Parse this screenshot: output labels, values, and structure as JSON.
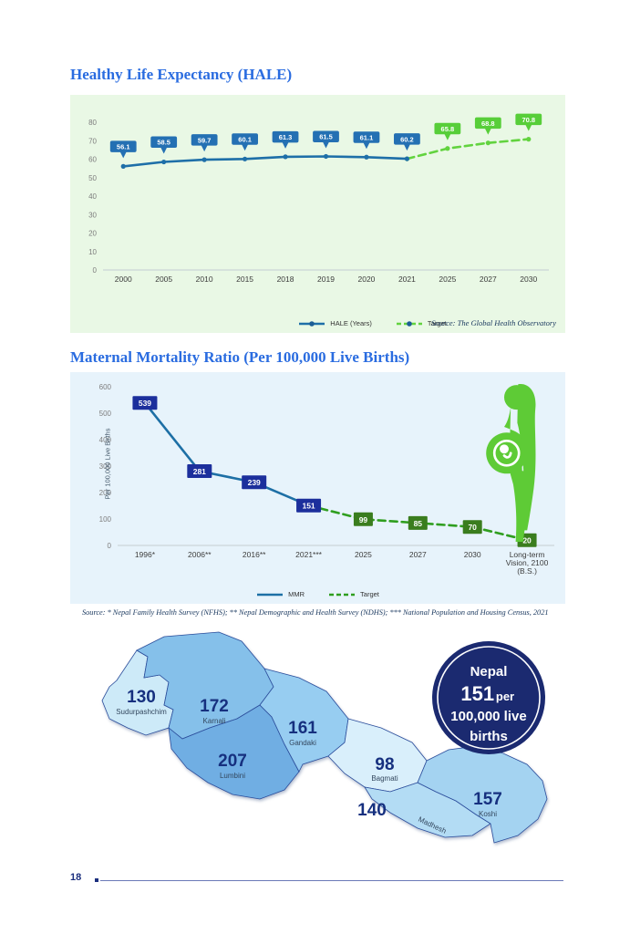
{
  "page": {
    "number": "18"
  },
  "chart_data": [
    {
      "type": "line",
      "title": "Healthy Life Expectancy (HALE)",
      "categories": [
        "2000",
        "2005",
        "2010",
        "2015",
        "2018",
        "2019",
        "2020",
        "2021",
        "2025",
        "2027",
        "2030"
      ],
      "series": [
        {
          "name": "HALE (Years)",
          "values": [
            56.1,
            58.5,
            59.7,
            60.1,
            61.3,
            61.5,
            61.1,
            60.2,
            null,
            null,
            null
          ],
          "color": "#1e6fa8",
          "label_color": "#2470b3",
          "dash": false,
          "label_skip_first": false
        },
        {
          "name": "Target",
          "values": [
            null,
            null,
            null,
            null,
            null,
            null,
            null,
            60.2,
            65.8,
            68.8,
            70.8
          ],
          "color": "#62d33f",
          "label_color": "#57ce39",
          "dash": true,
          "label_skip_first": true
        }
      ],
      "ylim": [
        0,
        80
      ],
      "ytick_step": 10,
      "grid": false,
      "legend_position": "bottom",
      "source": "Source: The Global Health Observatory"
    },
    {
      "type": "line",
      "title": "Maternal Mortality Ratio (Per 100,000 Live Births)",
      "ylabel": "Per 100,000 Live Births",
      "categories": [
        "1996*",
        "2006**",
        "2016**",
        "2021***",
        "2025",
        "2027",
        "2030",
        "Long-term\nVision, 2100\n(B.S.)"
      ],
      "series": [
        {
          "name": "MMR",
          "values": [
            539,
            281,
            239,
            151,
            null,
            null,
            null,
            null
          ],
          "color": "#1d6fa5",
          "label_color": "#1c2f9c",
          "dash": false,
          "label_skip_first": false
        },
        {
          "name": "Target",
          "values": [
            null,
            null,
            null,
            151,
            99,
            85,
            70,
            20
          ],
          "color": "#2f9e1f",
          "label_color": "#3a7d1e",
          "dash": true,
          "label_skip_first": true
        }
      ],
      "ylim": [
        0,
        600
      ],
      "ytick_step": 100,
      "grid": false,
      "legend_position": "bottom",
      "source": "Source: * Nepal Family Health Survey (NFHS); ** Nepal Demographic and Health Survey (NDHS); *** National Population and Housing Census, 2021"
    }
  ],
  "map": {
    "badge": {
      "line1": "Nepal",
      "value": "151",
      "unit": "per",
      "line2": "100,000 live",
      "line3": "births"
    },
    "regions": [
      {
        "name": "Sudurpashchim",
        "value": "130"
      },
      {
        "name": "Karnali",
        "value": "172"
      },
      {
        "name": "Lumbini",
        "value": "207"
      },
      {
        "name": "Gandaki",
        "value": "161"
      },
      {
        "name": "Bagmati",
        "value": "98"
      },
      {
        "name": "Madhesh",
        "value": "140"
      },
      {
        "name": "Koshi",
        "value": "157"
      }
    ],
    "colors": {
      "sudurpashchim": "#cdeaf8",
      "karnali": "#85c0ea",
      "lumbini": "#70aee3",
      "gandaki": "#97cdf1",
      "bagmati": "#d9effb",
      "madhesh": "#b3dcf4",
      "koshi": "#a4d3f1",
      "badge_navy": "#1b2a70",
      "value_text": "#16307f"
    }
  }
}
